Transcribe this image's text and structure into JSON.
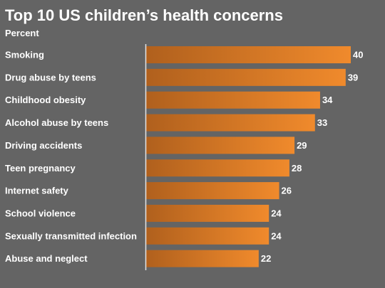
{
  "chart_data": {
    "type": "bar",
    "orientation": "horizontal",
    "title": "Top 10 US children’s health concerns",
    "subtitle": "Percent",
    "categories": [
      "Smoking",
      "Drug abuse by teens",
      "Childhood obesity",
      "Alcohol abuse by teens",
      "Driving accidents",
      "Teen pregnancy",
      "Internet safety",
      "School violence",
      "Sexually transmitted infection",
      "Abuse and neglect"
    ],
    "values": [
      40,
      39,
      34,
      33,
      29,
      28,
      26,
      24,
      24,
      22
    ],
    "xlim": [
      0,
      40
    ],
    "grid": false,
    "legend": "none"
  },
  "colors": {
    "background": "#646464",
    "text": "#ffffff",
    "bar_start": "#b0601d",
    "bar_end": "#f08a2c",
    "axis": "#e6e6e6"
  }
}
